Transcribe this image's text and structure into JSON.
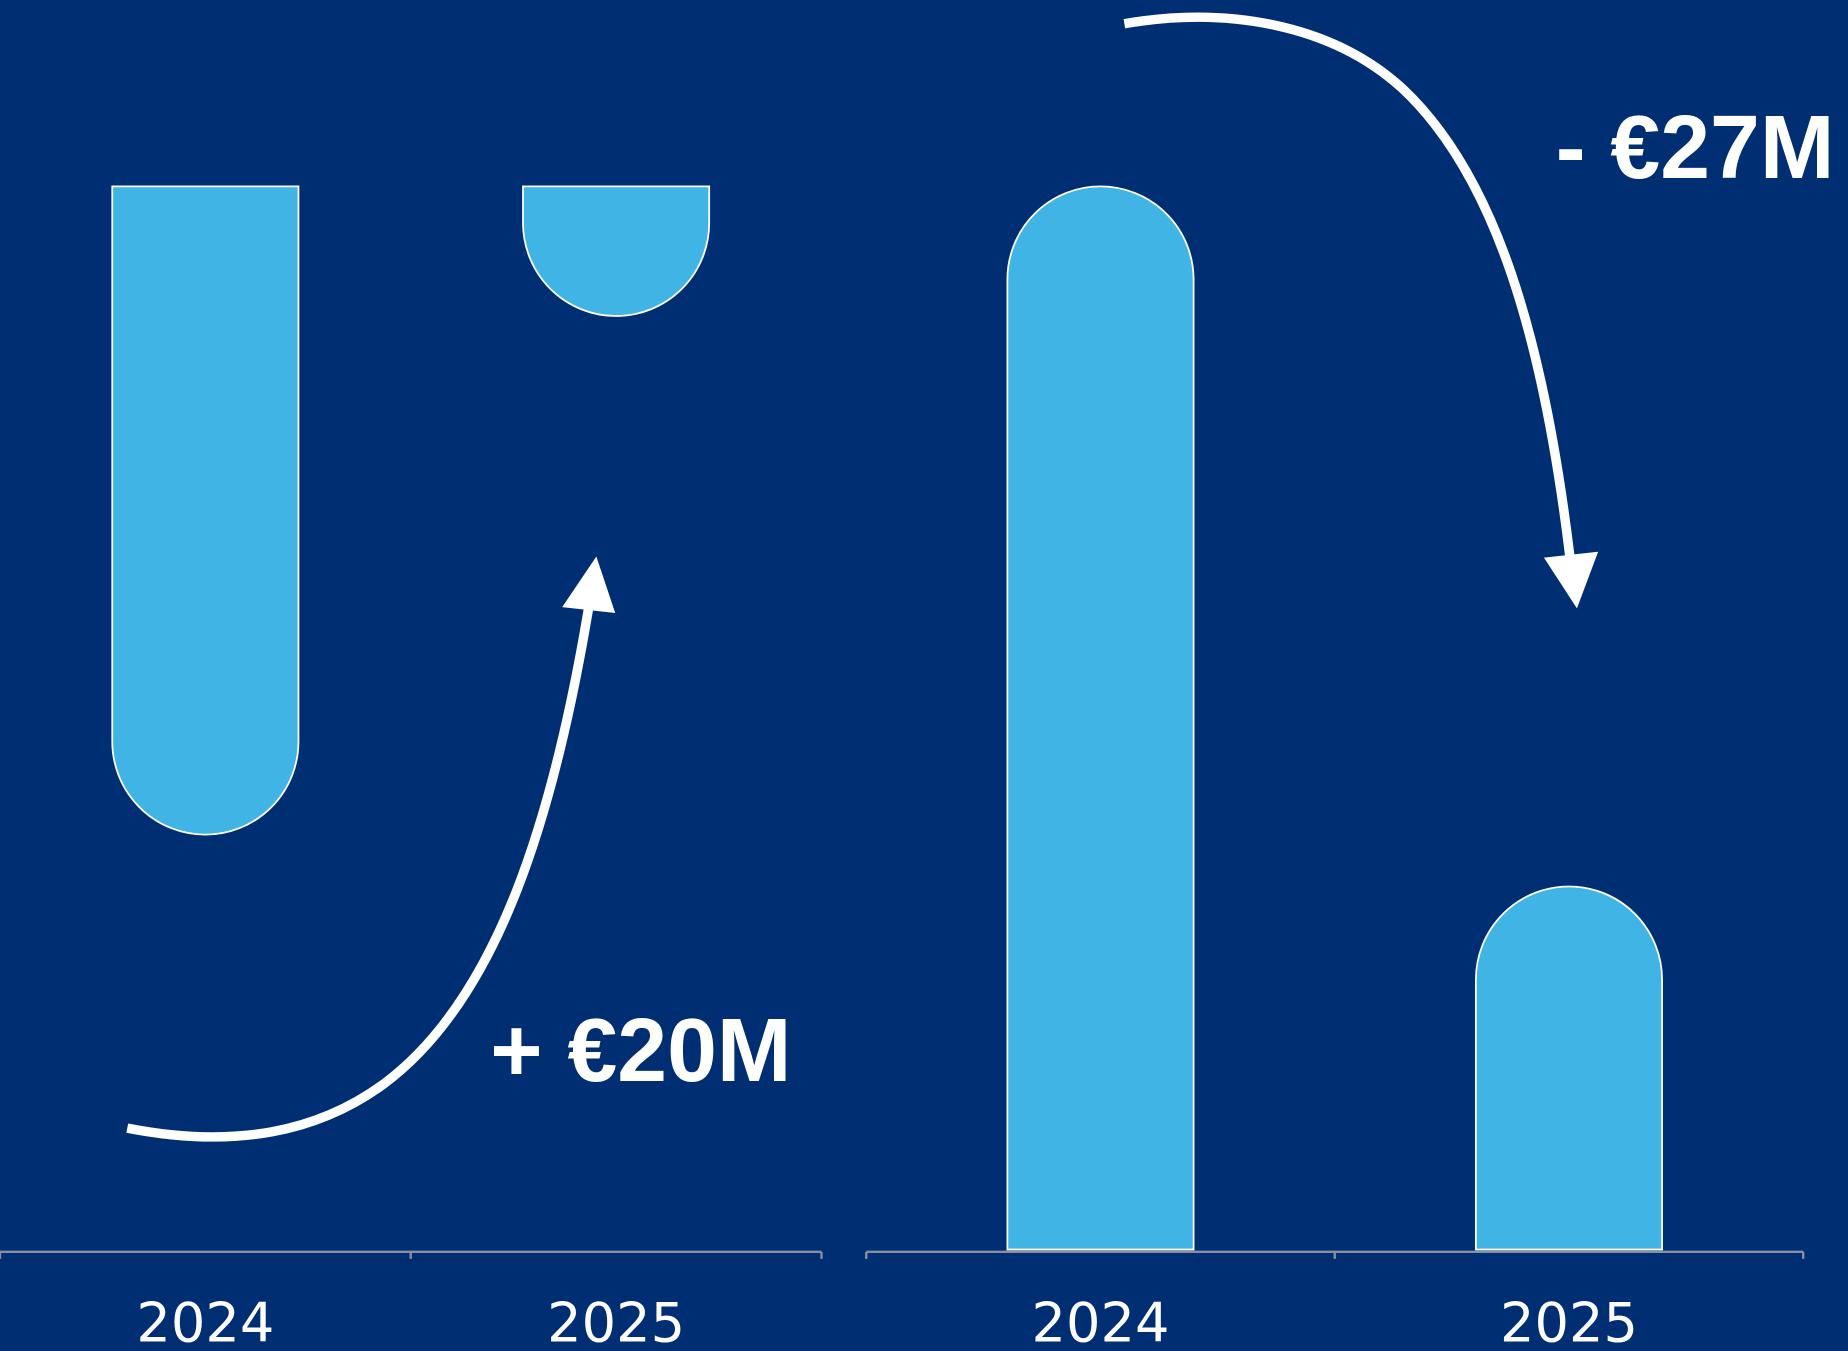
{
  "chart_data": [
    {
      "type": "bar",
      "categories": [
        "2024",
        "2025"
      ],
      "values": [
        -25,
        -5
      ],
      "color": "#41b4e6",
      "ylim": [
        -41,
        0
      ],
      "annotation": "+ €20M"
    },
    {
      "type": "bar",
      "categories": [
        "2024",
        "2025"
      ],
      "values": [
        41,
        14
      ],
      "color": "#41b4e6",
      "ylim": [
        0,
        41
      ],
      "annotation": "- €27M"
    }
  ]
}
